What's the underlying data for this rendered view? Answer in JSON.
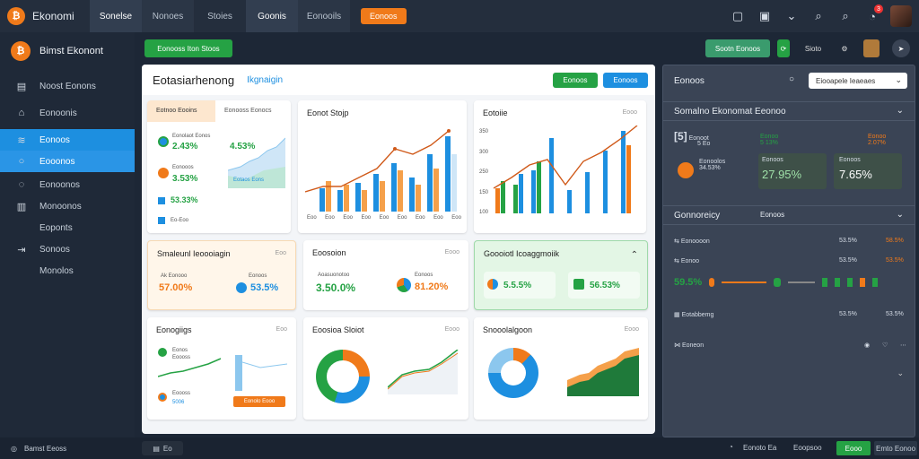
{
  "colors": {
    "accent": "#1d8fe0",
    "green": "#25a244",
    "orange": "#f07a1a",
    "bg": "#1d2736"
  },
  "top": {
    "brand": "Ekonomi",
    "tabs": [
      "Sonelse",
      "Nonoes",
      "Stoies",
      "Goonis",
      "Eonooils"
    ],
    "orange_button": "Eonoos",
    "badge_count": "3"
  },
  "sidebar": {
    "brand": "Bimst Ekonont",
    "items": [
      "Noost Eonons",
      "Eonoonis",
      "Eonoos",
      "Eooonos",
      "Eonoonos",
      "Monoonos",
      "Eoponts",
      "Sonoos",
      "Monolos"
    ]
  },
  "subbar": {
    "green_button": "Eonooss Iton Stoos",
    "teal_button": "Sootn Eonoos",
    "label": "Sioto"
  },
  "main": {
    "title": "Eotasiarhenong",
    "subtitle": "Ikgnaigin",
    "btn_green": "Eonoos",
    "btn_blue": "Eonoos",
    "card1": {
      "tab1": "Eotnoo Eooins",
      "tab2": "Eonooss Eonocs",
      "m1_label": "Eonolaot Eonos",
      "m1_value": "2.43%",
      "m1_side": "4.53%",
      "m2_label": "Eonooos",
      "m2_value": "3.53%",
      "m3_value": "53.33%",
      "m4_label": "Eo-Eoo",
      "legend": "Eotaos Eons"
    },
    "card2": {
      "title": "Eonot Stojp",
      "x_labels": [
        "Eoo",
        "Eoo",
        "Eoo",
        "Eoo",
        "Eoo",
        "Eoo",
        "Eoo",
        "Eoo",
        "Eoo"
      ]
    },
    "card3": {
      "title": "Eotoiie",
      "meta": "Eooo",
      "y_labels": [
        "350",
        "300",
        "250",
        "150",
        "100"
      ]
    },
    "card4": {
      "title": "Smaleunl Ieoooiagin",
      "meta": "Eoo",
      "m1": "57.00%",
      "m1_label": "Ak Eonooo",
      "m2": "53.5%",
      "m2_label": "Eonoos"
    },
    "card5": {
      "title": "Eoosoion",
      "meta": "Eooo",
      "m1": "3.50.0%",
      "m1_label": "Aoasuonotoo",
      "m2": "81.20%",
      "m2_label": "Eonoos"
    },
    "card6": {
      "title": "Goooiotl Icoaggmoiik",
      "m1": "5.5.5%",
      "m2": "56.53%"
    },
    "card7": {
      "title": "Eonogiigs",
      "meta": "Eoo",
      "l1": "Eonos",
      "l2": "Eoooss",
      "l3": "Eoooss",
      "l4": "5006",
      "button": "Eonolo Eooo"
    },
    "card8": {
      "title": "Eoosioa Sloiot",
      "meta": "Eooo"
    },
    "card9": {
      "title": "Snooolalgoon",
      "meta": "Eooo"
    }
  },
  "right": {
    "title": "Eonoos",
    "select": "Eiooapele Ieaeaes",
    "sec1": "Somalno Ekonomat Eeonoo",
    "s1_items": [
      {
        "label": "Eonoot",
        "value": "5 Eo"
      },
      {
        "label": "Eonoo",
        "value": "5 13%"
      },
      {
        "label": "Eonoo",
        "value": "2.07%"
      }
    ],
    "s1_big": [
      {
        "label": "Eonoolos",
        "value": "34.53%"
      },
      {
        "label": "Eonoos",
        "value": "27.95%"
      },
      {
        "label": "Eonoos",
        "value": "7.65%"
      }
    ],
    "sec2": "Gonnoreicy",
    "sec2_right": "Eonoos",
    "rows": [
      {
        "label": "Eonoooon",
        "v1": "53.5%",
        "v2": "58.5%"
      },
      {
        "label": "Eonoo",
        "v1": "53.5%",
        "v2": "53.5%"
      },
      {
        "label": "Eotabbemg",
        "v1": "53.5%",
        "v2": "53.5%"
      },
      {
        "label": "Eoneon",
        "v1": "",
        "v2": ""
      }
    ],
    "heat": "59.5%"
  },
  "status": {
    "left": "Bamst Eeoss",
    "mid": "Eo",
    "right_label": "Eonoto Ea",
    "right2": "Eoopsoo",
    "green_btn": "Eooo",
    "right_btn": "Emto Eonoo"
  }
}
